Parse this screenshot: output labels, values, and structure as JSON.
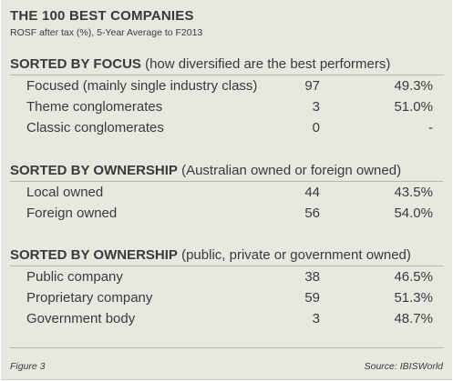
{
  "header": {
    "title": "THE 100 BEST COMPANIES",
    "subtitle": "ROSF after tax (%),  5-Year Average to F2013"
  },
  "sections": [
    {
      "heading_bold": "SORTED BY FOCUS",
      "heading_note": "(how diversified are the best performers)",
      "rows": [
        {
          "label": "Focused (mainly single industry class)",
          "count": "97",
          "pct": "49.3%"
        },
        {
          "label": "Theme conglomerates",
          "count": "3",
          "pct": "51.0%"
        },
        {
          "label": "Classic conglomerates",
          "count": "0",
          "pct": "-"
        }
      ]
    },
    {
      "heading_bold": "SORTED BY OWNERSHIP",
      "heading_note": "(Australian owned or foreign owned)",
      "rows": [
        {
          "label": "Local owned",
          "count": "44",
          "pct": "43.5%"
        },
        {
          "label": "Foreign owned",
          "count": "56",
          "pct": "54.0%"
        }
      ]
    },
    {
      "heading_bold": "SORTED BY OWNERSHIP",
      "heading_note": "(public, private or government owned)",
      "rows": [
        {
          "label": "Public company",
          "count": "38",
          "pct": "46.5%"
        },
        {
          "label": "Proprietary company",
          "count": "59",
          "pct": "51.3%"
        },
        {
          "label": "Government body",
          "count": "3",
          "pct": "48.7%"
        }
      ]
    }
  ],
  "footer": {
    "figure_label": "Figure 3",
    "source": "Source: IBISWorld"
  },
  "colors": {
    "panel_background": "#e8e8e1",
    "text": "#3a3a3a",
    "divider": "#b8b8b0"
  }
}
